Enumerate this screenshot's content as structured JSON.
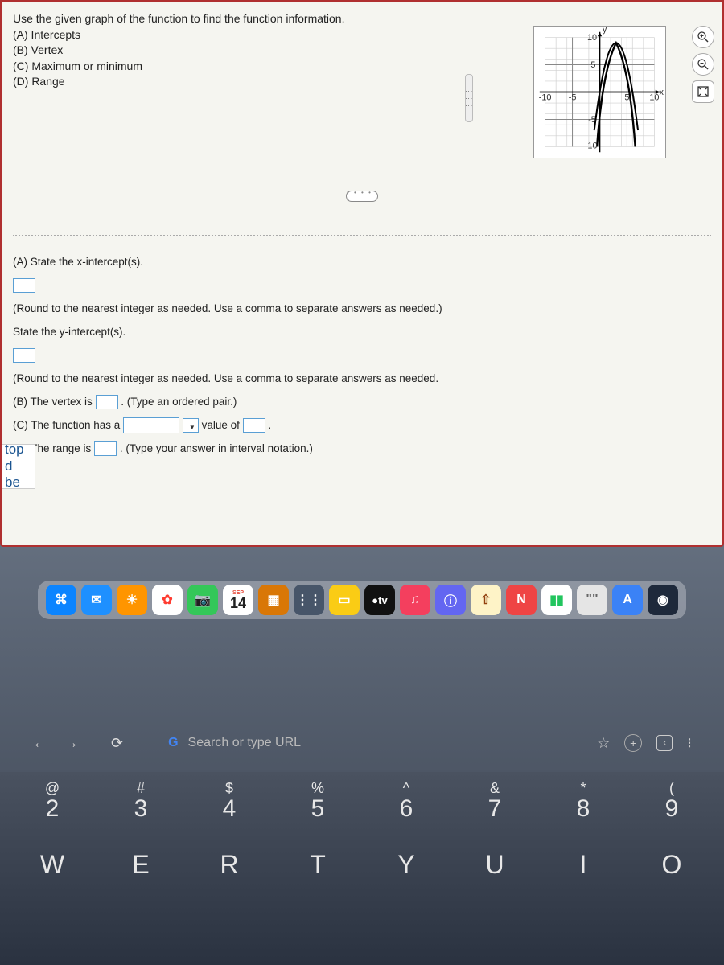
{
  "question": {
    "prompt": "Use the given graph of the function to find the function information.",
    "parts": [
      "(A) Intercepts",
      "(B) Vertex",
      "(C) Maximum or minimum",
      "(D) Range"
    ]
  },
  "graph": {
    "type": "parabola",
    "xlim": [
      -10,
      10
    ],
    "ylim": [
      -10,
      10
    ],
    "xtick_labels": [
      "-10",
      "-5",
      "5",
      "10"
    ],
    "ytick_labels": [
      "-10",
      "-5",
      "5",
      "10"
    ],
    "axis_labels": {
      "x": "x",
      "y": "y"
    },
    "grid_color": "#cfcfcf",
    "axis_color": "#000000",
    "curve_color": "#000000",
    "curve_width": 1.5,
    "background_color": "#ffffff",
    "vertex": [
      3,
      9
    ],
    "x_intercepts": [
      0,
      6
    ],
    "curve_points": [
      [
        -1,
        -7
      ],
      [
        0,
        0
      ],
      [
        1,
        5
      ],
      [
        2,
        8
      ],
      [
        3,
        9
      ],
      [
        4,
        8
      ],
      [
        5,
        5
      ],
      [
        6,
        0
      ],
      [
        7,
        -7
      ]
    ]
  },
  "tools": {
    "zoom_in": "⊕",
    "zoom_out": "⊖",
    "expand": "⤢"
  },
  "answers": {
    "a_label1": "(A) State the x-intercept(s).",
    "a_note": "(Round to the nearest integer as needed. Use a comma to separate answers as needed.)",
    "a_label2": "State the y-intercept(s).",
    "a_note2": "(Round to the nearest integer as needed. Use a comma to separate answers as needed.",
    "b_pre": "(B) The vertex is ",
    "b_post": ". (Type an ordered pair.)",
    "c_pre": "(C) The function has a ",
    "c_mid": " value of ",
    "c_post": ".",
    "d_pre": "(D) The range is ",
    "d_post": ". (Type your answer in interval notation.)"
  },
  "sidebar": {
    "line1": "top",
    "line2": "d be"
  },
  "dock": {
    "calendar": {
      "month": "SEP",
      "day": "14"
    },
    "items": [
      {
        "bg": "#0b84ff",
        "glyph": "⌘"
      },
      {
        "bg": "#1e90ff",
        "glyph": "✉"
      },
      {
        "bg": "#ff9500",
        "glyph": "☀"
      },
      {
        "bg": "#ffffff",
        "glyph": "✿",
        "fg": "#ff3b30"
      },
      {
        "bg": "#34c759",
        "glyph": "📷"
      },
      {
        "bg": "#ffffff",
        "glyph": "CAL"
      },
      {
        "bg": "#d97706",
        "glyph": "▦"
      },
      {
        "bg": "#475569",
        "glyph": "⋮⋮"
      },
      {
        "bg": "#facc15",
        "glyph": "▭"
      },
      {
        "bg": "#111111",
        "glyph": "tv",
        "label": "tv"
      },
      {
        "bg": "#f43f5e",
        "glyph": "♫"
      },
      {
        "bg": "#6366f1",
        "glyph": "ⓘ"
      },
      {
        "bg": "#fef3c7",
        "glyph": "⇧",
        "fg": "#92400e"
      },
      {
        "bg": "#ef4444",
        "glyph": "N"
      },
      {
        "bg": "#ffffff",
        "glyph": "▮▮",
        "fg": "#22c55e"
      },
      {
        "bg": "#e5e5e5",
        "glyph": "\"\"",
        "fg": "#666"
      },
      {
        "bg": "#3b82f6",
        "glyph": "A"
      },
      {
        "bg": "#1e293b",
        "glyph": "◉"
      }
    ]
  },
  "browser": {
    "search_placeholder": "Search or type URL",
    "g_color": "#4285f4"
  },
  "keyboard": {
    "row1": [
      {
        "u": "@",
        "l": "2"
      },
      {
        "u": "#",
        "l": "3"
      },
      {
        "u": "$",
        "l": "4"
      },
      {
        "u": "%",
        "l": "5"
      },
      {
        "u": "^",
        "l": "6"
      },
      {
        "u": "&",
        "l": "7"
      },
      {
        "u": "*",
        "l": "8"
      },
      {
        "u": "(",
        "l": "9"
      }
    ],
    "row2": [
      "W",
      "E",
      "R",
      "T",
      "Y",
      "U",
      "I",
      "O"
    ]
  }
}
